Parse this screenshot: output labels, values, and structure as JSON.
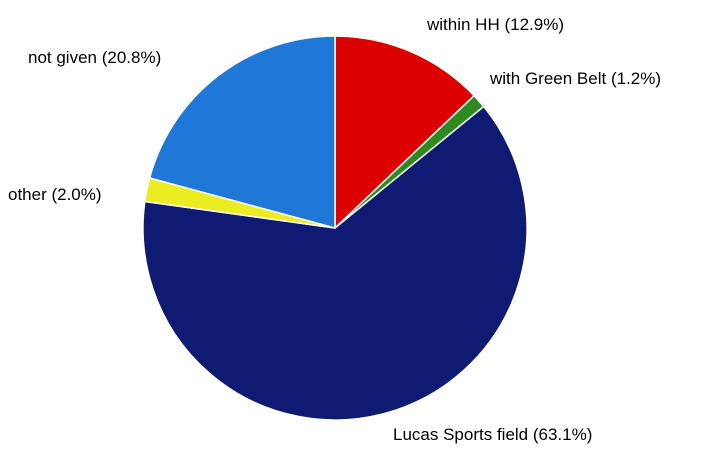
{
  "chart_data": {
    "type": "pie",
    "start_angle_deg": 0,
    "direction": "clockwise",
    "slices": [
      {
        "label": "within HH (12.9%)",
        "value": 12.9,
        "color": "#dd0000"
      },
      {
        "label": "with Green Belt (1.2%)",
        "value": 1.2,
        "color": "#2e8a1e"
      },
      {
        "label": "Lucas Sports field (63.1%)",
        "value": 63.1,
        "color": "#0f1a73"
      },
      {
        "label": "other (2.0%)",
        "value": 2.0,
        "color": "#ecec22"
      },
      {
        "label": "not given (20.8%)",
        "value": 20.8,
        "color": "#1f78d8"
      }
    ]
  }
}
